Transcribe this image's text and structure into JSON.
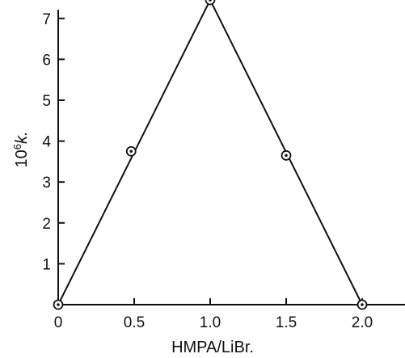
{
  "chart_data": {
    "type": "line",
    "xlabel": "HMPA/LiBr.",
    "ylabel_base": "10",
    "ylabel_exp": "6",
    "ylabel_rest": "k.",
    "xlim": [
      0,
      2.3
    ],
    "ylim": [
      0,
      7.9
    ],
    "x_ticks": [
      0,
      0.5,
      1.0,
      1.5,
      2.0
    ],
    "x_tick_labels": [
      "0",
      "0.5",
      "1.0",
      "1.5",
      "2.0"
    ],
    "y_ticks": [
      1,
      2,
      3,
      4,
      5,
      6,
      7
    ],
    "y_tick_labels": [
      "1",
      "2",
      "3",
      "4",
      "5",
      "6",
      "7"
    ],
    "grid": false,
    "series": [
      {
        "x": [
          0,
          0.48,
          1.0,
          1.5,
          2.0
        ],
        "y": [
          0,
          3.75,
          7.45,
          3.65,
          0
        ]
      }
    ],
    "fit_line": {
      "x": [
        0,
        1.0,
        2.0
      ],
      "y": [
        0,
        7.45,
        0
      ]
    }
  }
}
